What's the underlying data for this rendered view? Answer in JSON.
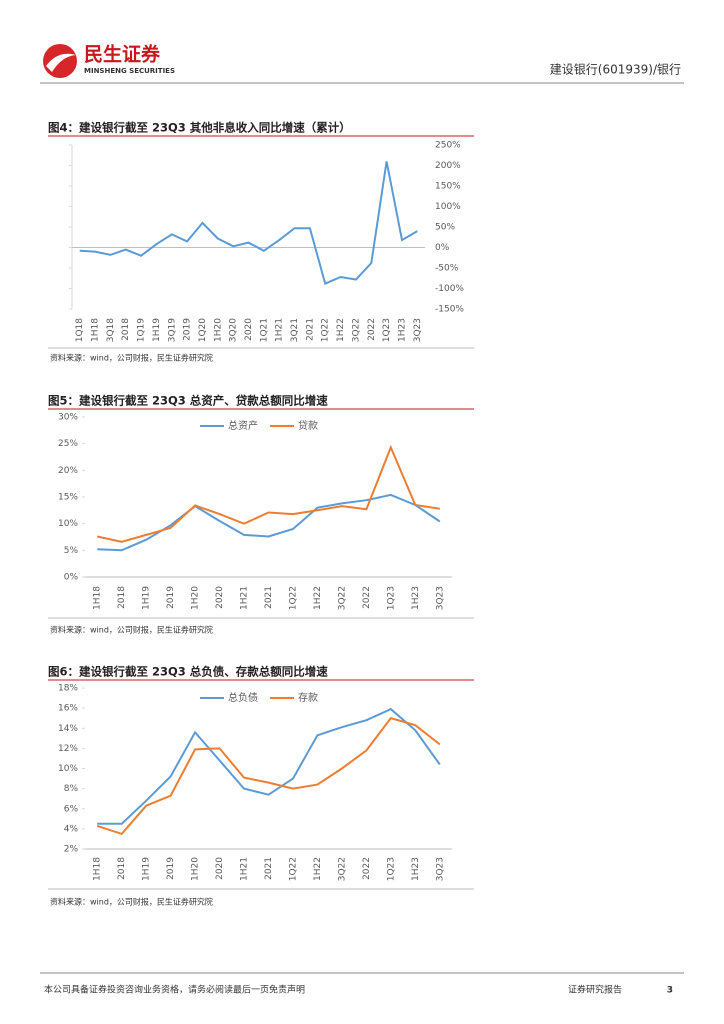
{
  "header": {
    "brand": "民生证券",
    "brand_en": "MINSHENG SECURITIES",
    "report": "建设银行(601939)/银行"
  },
  "chart_data": [
    {
      "type": "line",
      "title": "图4：建设银行截至 23Q3 其他非息收入同比增速（累计）",
      "axis_side": "right",
      "color": "#5b9bd5",
      "categories": [
        "1Q18",
        "1H18",
        "3Q18",
        "2018",
        "1Q19",
        "1H19",
        "3Q19",
        "2019",
        "1Q20",
        "1H20",
        "3Q20",
        "2020",
        "1Q21",
        "1H21",
        "3Q21",
        "2021",
        "1Q22",
        "1H22",
        "3Q22",
        "2022",
        "1Q23",
        "1H23",
        "3Q23"
      ],
      "values": [
        -8,
        -10,
        -18,
        -5,
        -20,
        8,
        32,
        15,
        60,
        22,
        3,
        12,
        -8,
        18,
        47,
        47,
        -88,
        -72,
        -78,
        -38,
        210,
        18,
        40
      ],
      "ylim": [
        -150,
        250
      ],
      "yticks": [
        {
          "value": 250,
          "label": "250%"
        },
        {
          "value": 200,
          "label": "200%"
        },
        {
          "value": 150,
          "label": "150%"
        },
        {
          "value": 100,
          "label": "100%"
        },
        {
          "value": 50,
          "label": "50%"
        },
        {
          "value": 0,
          "label": "0%"
        },
        {
          "value": -50,
          "label": "-50%"
        },
        {
          "value": -100,
          "label": "-100%"
        },
        {
          "value": -150,
          "label": "-150%"
        }
      ],
      "source": "资料来源：wind，公司财报，民生证券研究院"
    },
    {
      "type": "line",
      "title": "图5：建设银行截至 23Q3 总资产、贷款总额同比增速",
      "axis_side": "left",
      "categories": [
        "1H18",
        "2018",
        "1H19",
        "2019",
        "1H20",
        "2020",
        "1H21",
        "2021",
        "1Q22",
        "1H22",
        "3Q22",
        "2022",
        "1Q23",
        "1H23",
        "3Q23"
      ],
      "series": [
        {
          "name": "总资产",
          "color": "#5b9bd5",
          "values": [
            5.2,
            5.0,
            7.0,
            9.7,
            13.3,
            10.5,
            7.9,
            7.6,
            9.0,
            13.0,
            13.8,
            14.4,
            15.4,
            13.5,
            10.4
          ]
        },
        {
          "name": "贷款",
          "color": "#ed7d31",
          "values": [
            7.6,
            6.6,
            7.9,
            9.2,
            13.4,
            11.8,
            10.0,
            12.1,
            11.8,
            12.5,
            13.3,
            12.7,
            24.3,
            13.5,
            12.8
          ]
        }
      ],
      "ylim": [
        0,
        30
      ],
      "yticks": [
        {
          "value": 0,
          "label": "0%"
        },
        {
          "value": 5,
          "label": "5%"
        },
        {
          "value": 10,
          "label": "10%"
        },
        {
          "value": 15,
          "label": "15%"
        },
        {
          "value": 20,
          "label": "20%"
        },
        {
          "value": 25,
          "label": "25%"
        },
        {
          "value": 30,
          "label": "30%"
        }
      ],
      "source": "资料来源：wind，公司财报，民生证券研究院"
    },
    {
      "type": "line",
      "title": "图6：建设银行截至 23Q3 总负债、存款总额同比增速",
      "axis_side": "left",
      "categories": [
        "1H18",
        "2018",
        "1H19",
        "2019",
        "1H20",
        "2020",
        "1H21",
        "2021",
        "1Q22",
        "1H22",
        "3Q22",
        "2022",
        "1Q23",
        "1H23",
        "3Q23"
      ],
      "series": [
        {
          "name": "总负债",
          "color": "#5b9bd5",
          "values": [
            4.5,
            4.5,
            6.8,
            9.2,
            13.6,
            10.8,
            8.0,
            7.4,
            9.0,
            13.3,
            14.1,
            14.8,
            15.9,
            13.8,
            10.4
          ]
        },
        {
          "name": "存款",
          "color": "#ed7d31",
          "values": [
            4.3,
            3.5,
            6.3,
            7.3,
            11.9,
            12.0,
            9.1,
            8.6,
            8.0,
            8.4,
            10.0,
            11.8,
            15.0,
            14.3,
            12.4
          ]
        }
      ],
      "ylim": [
        2,
        18
      ],
      "yticks": [
        {
          "value": 2,
          "label": "2%"
        },
        {
          "value": 4,
          "label": "4%"
        },
        {
          "value": 6,
          "label": "6%"
        },
        {
          "value": 8,
          "label": "8%"
        },
        {
          "value": 10,
          "label": "10%"
        },
        {
          "value": 12,
          "label": "12%"
        },
        {
          "value": 14,
          "label": "14%"
        },
        {
          "value": 16,
          "label": "16%"
        },
        {
          "value": 18,
          "label": "18%"
        }
      ],
      "source": "资料来源：wind，公司财报，民生证券研究院"
    }
  ],
  "footer": {
    "disclaimer": "本公司具备证券投资咨询业务资格，请务必阅读最后一页免责声明",
    "label": "证券研究报告",
    "page": "3"
  }
}
